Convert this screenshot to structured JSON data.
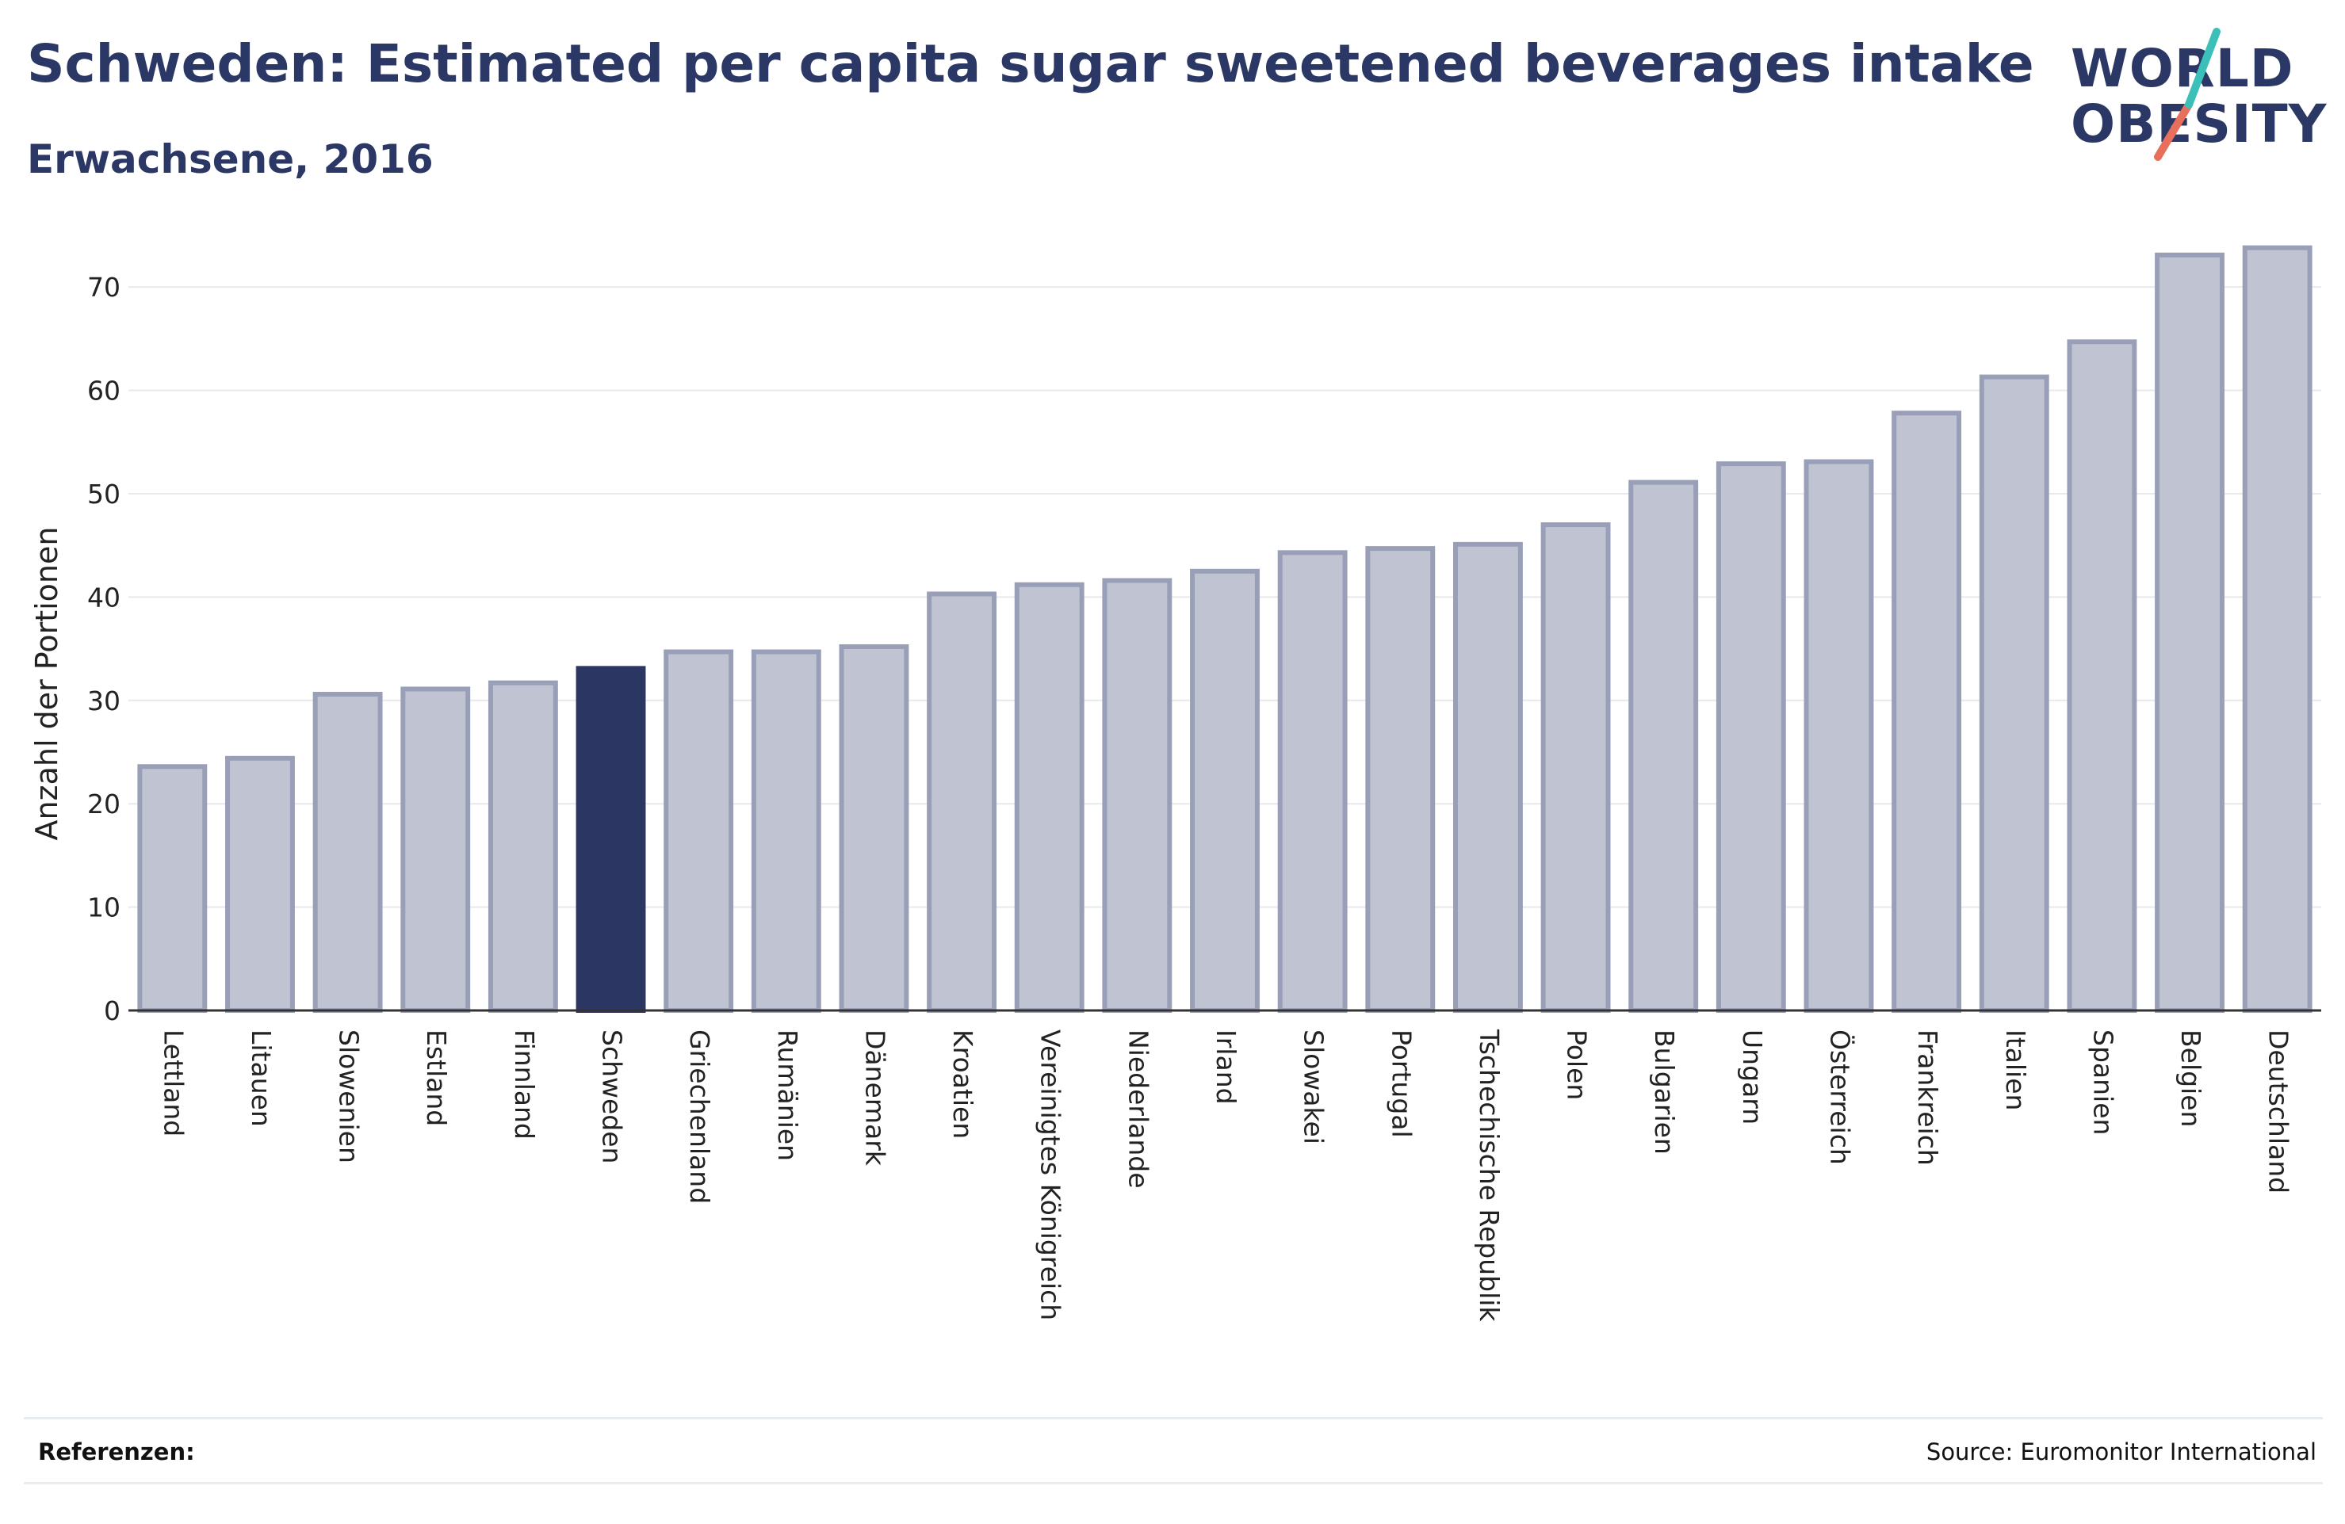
{
  "header": {
    "title": "Schweden: Estimated per capita sugar sweetened beverages intake",
    "subtitle": "Erwachsene, 2016"
  },
  "logo": {
    "line1": "WORLD",
    "line2": "OBESITY"
  },
  "footer": {
    "references_label": "Referenzen:",
    "source": "Source: Euromonitor International"
  },
  "colors": {
    "highlight": "#2b3663",
    "bar_fill": "#c0c3d1",
    "bar_stroke": "#9a9fb8",
    "title": "#2b3866",
    "logo_teal": "#3bbfb8",
    "logo_coral": "#e86f5c"
  },
  "chart_data": {
    "type": "bar",
    "ylabel": "Anzahl der Portionen",
    "xlabel": "",
    "ylim": [
      0,
      74
    ],
    "yticks": [
      0,
      10,
      20,
      30,
      40,
      50,
      60,
      70
    ],
    "grid": true,
    "highlight": "Schweden",
    "categories": [
      "Lettland",
      "Litauen",
      "Slowenien",
      "Estland",
      "Finnland",
      "Schweden",
      "Griechenland",
      "Rumänien",
      "Dänemark",
      "Kroatien",
      "Vereinigtes Königreich",
      "Niederlande",
      "Irland",
      "Slowakei",
      "Portugal",
      "Tschechische Republik",
      "Polen",
      "Bulgarien",
      "Ungarn",
      "Österreich",
      "Frankreich",
      "Italien",
      "Spanien",
      "Belgien",
      "Deutschland"
    ],
    "values": [
      23.6,
      24.4,
      30.6,
      31.1,
      31.7,
      33.1,
      34.7,
      34.7,
      35.2,
      40.3,
      41.2,
      41.6,
      42.5,
      44.3,
      44.7,
      45.1,
      47.0,
      51.1,
      52.9,
      53.1,
      57.8,
      61.3,
      64.7,
      73.1,
      73.8
    ]
  }
}
